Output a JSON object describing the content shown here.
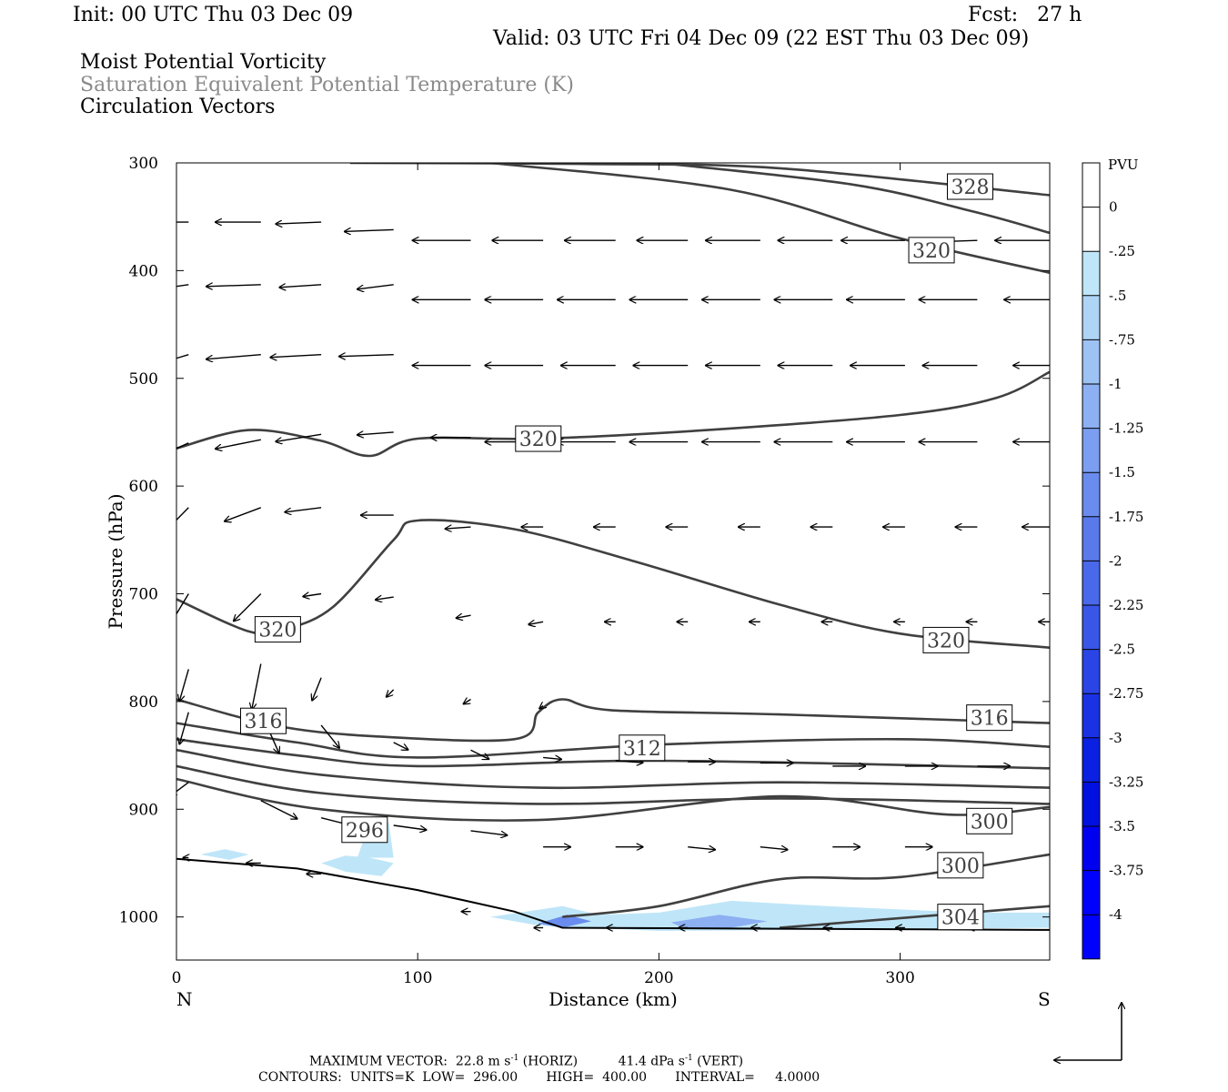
{
  "header": {
    "init": "Init: 00 UTC Thu 03 Dec 09",
    "fcst": "Fcst:   27 h",
    "valid": "Valid: 03 UTC Fri 04 Dec 09 (22 EST Thu 03 Dec 09)",
    "field1": "Moist Potential Vorticity",
    "field2": "Saturation Equivalent Potential Temperature (K)",
    "field3": "Circulation Vectors"
  },
  "colors": {
    "contour": "#404040",
    "vector": "#000000",
    "frame": "#000000",
    "scale": [
      "#ffffff",
      "#ffffff",
      "#bfe6f8",
      "#aed4f6",
      "#9dc2f4",
      "#8cb0f2",
      "#7b9ef0",
      "#6a8cee",
      "#5a7aec",
      "#4a68ea",
      "#3a56e8",
      "#2a44e6",
      "#1a32e4",
      "#0a20e2",
      "#0010e0",
      "#0000f0",
      "#0000ff",
      "#0000ff"
    ]
  },
  "chart_data": {
    "type": "contour",
    "xlabel": "Distance (km)",
    "ylabel": "Pressure (hPa)",
    "xlim": [
      0,
      362
    ],
    "ylim": [
      300,
      1040
    ],
    "x_ticks": [
      0,
      100,
      200,
      300
    ],
    "y_ticks": [
      300,
      400,
      500,
      600,
      700,
      800,
      900,
      1000
    ],
    "x_end_left": "N",
    "x_end_right": "S",
    "colorbar_title": "PVU",
    "colorbar_labels": [
      "0",
      "-.25",
      "-.5",
      "-.75",
      "-1",
      "-1.25",
      "-1.5",
      "-1.75",
      "-2",
      "-2.25",
      "-2.5",
      "-2.75",
      "-3",
      "-3.25",
      "-3.5",
      "-3.75",
      "-4"
    ],
    "contours": [
      {
        "points": [
          [
            72,
            300
          ],
          [
            170,
            301
          ],
          [
            250,
            305
          ],
          [
            362,
            330
          ]
        ]
      },
      {
        "points": [
          [
            200,
            300
          ],
          [
            280,
            320
          ],
          [
            330,
            345
          ],
          [
            362,
            365
          ]
        ]
      },
      {
        "points": [
          [
            130,
            300
          ],
          [
            230,
            325
          ],
          [
            300,
            370
          ],
          [
            362,
            402
          ]
        ]
      },
      {
        "points": [
          [
            0,
            565
          ],
          [
            30,
            548
          ],
          [
            60,
            558
          ],
          [
            80,
            572
          ],
          [
            100,
            556
          ],
          [
            150,
            556
          ],
          [
            220,
            548
          ],
          [
            300,
            534
          ],
          [
            340,
            518
          ],
          [
            362,
            494
          ]
        ]
      },
      {
        "points": [
          [
            0,
            705
          ],
          [
            30,
            735
          ],
          [
            45,
            733
          ],
          [
            65,
            712
          ],
          [
            90,
            650
          ],
          [
            100,
            632
          ],
          [
            140,
            640
          ],
          [
            190,
            670
          ],
          [
            250,
            710
          ],
          [
            300,
            737
          ],
          [
            362,
            750
          ]
        ]
      },
      {
        "points": [
          [
            0,
            798
          ],
          [
            40,
            822
          ],
          [
            80,
            832
          ],
          [
            140,
            835
          ],
          [
            150,
            810
          ],
          [
            160,
            798
          ],
          [
            180,
            808
          ],
          [
            250,
            812
          ],
          [
            362,
            820
          ]
        ]
      },
      {
        "points": [
          [
            0,
            820
          ],
          [
            50,
            838
          ],
          [
            100,
            852
          ],
          [
            200,
            840
          ],
          [
            300,
            835
          ],
          [
            362,
            842
          ]
        ]
      },
      {
        "points": [
          [
            0,
            835
          ],
          [
            50,
            850
          ],
          [
            100,
            860
          ],
          [
            200,
            855
          ],
          [
            362,
            862
          ]
        ]
      },
      {
        "points": [
          [
            0,
            845
          ],
          [
            60,
            868
          ],
          [
            150,
            880
          ],
          [
            250,
            875
          ],
          [
            362,
            880
          ]
        ]
      },
      {
        "points": [
          [
            0,
            860
          ],
          [
            60,
            885
          ],
          [
            150,
            895
          ],
          [
            250,
            890
          ],
          [
            362,
            895
          ]
        ]
      },
      {
        "points": [
          [
            0,
            872
          ],
          [
            60,
            900
          ],
          [
            150,
            910
          ],
          [
            250,
            888
          ],
          [
            320,
            905
          ],
          [
            362,
            898
          ]
        ]
      },
      {
        "points": [
          [
            160,
            1000
          ],
          [
            200,
            990
          ],
          [
            250,
            965
          ],
          [
            300,
            963
          ],
          [
            362,
            942
          ]
        ]
      },
      {
        "points": [
          [
            250,
            1010
          ],
          [
            362,
            990
          ]
        ]
      }
    ],
    "contour_labels": [
      {
        "text": "328",
        "x": 329,
        "y": 322
      },
      {
        "text": "320",
        "x": 313,
        "y": 381
      },
      {
        "text": "320",
        "x": 150,
        "y": 556
      },
      {
        "text": "320",
        "x": 42,
        "y": 733
      },
      {
        "text": "320",
        "x": 319,
        "y": 743
      },
      {
        "text": "316",
        "x": 36,
        "y": 818
      },
      {
        "text": "316",
        "x": 337,
        "y": 815
      },
      {
        "text": "312",
        "x": 193,
        "y": 843
      },
      {
        "text": "300",
        "x": 337,
        "y": 911
      },
      {
        "text": "300",
        "x": 325,
        "y": 952
      },
      {
        "text": "296",
        "x": 78,
        "y": 919
      },
      {
        "text": "304",
        "x": 325,
        "y": 1000
      }
    ],
    "ground": [
      [
        0,
        946
      ],
      [
        50,
        955
      ],
      [
        100,
        975
      ],
      [
        140,
        995
      ],
      [
        160,
        1010
      ],
      [
        362,
        1012
      ]
    ],
    "pv_regions": [
      {
        "level": -0.25,
        "points": [
          [
            10,
            942
          ],
          [
            20,
            937
          ],
          [
            30,
            942
          ],
          [
            22,
            947
          ]
        ]
      },
      {
        "level": -0.25,
        "points": [
          [
            60,
            950
          ],
          [
            70,
            943
          ],
          [
            80,
            945
          ],
          [
            90,
            950
          ],
          [
            85,
            962
          ],
          [
            70,
            958
          ]
        ]
      },
      {
        "level": -0.25,
        "points": [
          [
            75,
            945
          ],
          [
            80,
            912
          ],
          [
            88,
            912
          ],
          [
            90,
            945
          ]
        ]
      },
      {
        "level": -0.25,
        "points": [
          [
            130,
            1000
          ],
          [
            160,
            990
          ],
          [
            175,
            998
          ],
          [
            200,
            996
          ],
          [
            230,
            985
          ],
          [
            270,
            990
          ],
          [
            330,
            996
          ],
          [
            362,
            996
          ],
          [
            362,
            1010
          ],
          [
            200,
            1013
          ],
          [
            150,
            1008
          ]
        ]
      },
      {
        "level": -1.5,
        "points": [
          [
            150,
            1006
          ],
          [
            162,
            998
          ],
          [
            172,
            1004
          ],
          [
            160,
            1010
          ]
        ]
      },
      {
        "level": -1.0,
        "points": [
          [
            205,
            1005
          ],
          [
            225,
            998
          ],
          [
            245,
            1004
          ],
          [
            230,
            1010
          ],
          [
            210,
            1010
          ]
        ]
      }
    ],
    "vectors": [
      [
        5,
        355,
        -32,
        0
      ],
      [
        35,
        355,
        -25,
        0
      ],
      [
        60,
        355,
        -25,
        2
      ],
      [
        90,
        362,
        -27,
        2
      ],
      [
        122,
        372,
        -32,
        0
      ],
      [
        152,
        372,
        -28,
        0
      ],
      [
        182,
        372,
        -28,
        0
      ],
      [
        212,
        372,
        -28,
        0
      ],
      [
        242,
        372,
        -30,
        0
      ],
      [
        272,
        372,
        -30,
        0
      ],
      [
        302,
        372,
        -35,
        0
      ],
      [
        332,
        372,
        -30,
        2
      ],
      [
        362,
        372,
        -30,
        0
      ],
      [
        5,
        413,
        -25,
        7
      ],
      [
        35,
        413,
        -30,
        2
      ],
      [
        60,
        413,
        -23,
        3
      ],
      [
        90,
        413,
        -20,
        5
      ],
      [
        122,
        427,
        -32,
        0
      ],
      [
        152,
        427,
        -32,
        0
      ],
      [
        182,
        427,
        -32,
        0
      ],
      [
        212,
        427,
        -32,
        0
      ],
      [
        242,
        427,
        -32,
        0
      ],
      [
        272,
        427,
        -32,
        0
      ],
      [
        302,
        427,
        -32,
        0
      ],
      [
        332,
        427,
        -32,
        0
      ],
      [
        362,
        427,
        -25,
        0
      ],
      [
        5,
        478,
        -25,
        15
      ],
      [
        35,
        478,
        -30,
        5
      ],
      [
        60,
        478,
        -28,
        3
      ],
      [
        90,
        478,
        -30,
        2
      ],
      [
        122,
        488,
        -32,
        0
      ],
      [
        152,
        488,
        -32,
        0
      ],
      [
        182,
        488,
        -30,
        0
      ],
      [
        212,
        488,
        -30,
        0
      ],
      [
        242,
        488,
        -30,
        0
      ],
      [
        272,
        488,
        -30,
        0
      ],
      [
        302,
        488,
        -30,
        0
      ],
      [
        332,
        488,
        -30,
        0
      ],
      [
        362,
        488,
        -20,
        0
      ],
      [
        5,
        560,
        -20,
        18
      ],
      [
        35,
        557,
        -25,
        10
      ],
      [
        60,
        552,
        -25,
        8
      ],
      [
        90,
        550,
        -20,
        3
      ],
      [
        122,
        555,
        -22,
        0
      ],
      [
        152,
        559,
        -32,
        0
      ],
      [
        182,
        559,
        -32,
        0
      ],
      [
        212,
        559,
        -32,
        0
      ],
      [
        242,
        559,
        -32,
        0
      ],
      [
        272,
        559,
        -32,
        0
      ],
      [
        302,
        559,
        -32,
        0
      ],
      [
        332,
        559,
        -32,
        0
      ],
      [
        362,
        559,
        -20,
        0
      ],
      [
        5,
        620,
        -22,
        45
      ],
      [
        35,
        620,
        -20,
        15
      ],
      [
        60,
        620,
        -20,
        5
      ],
      [
        90,
        627,
        -18,
        0
      ],
      [
        122,
        638,
        -14,
        2
      ],
      [
        152,
        638,
        -12,
        0
      ],
      [
        182,
        638,
        -12,
        0
      ],
      [
        212,
        638,
        -12,
        0
      ],
      [
        242,
        638,
        -12,
        0
      ],
      [
        272,
        638,
        -12,
        0
      ],
      [
        302,
        638,
        -12,
        0
      ],
      [
        332,
        638,
        -12,
        0
      ],
      [
        362,
        638,
        -15,
        0
      ],
      [
        5,
        700,
        -15,
        50
      ],
      [
        35,
        700,
        -15,
        30
      ],
      [
        60,
        700,
        -10,
        3
      ],
      [
        90,
        703,
        -10,
        3
      ],
      [
        122,
        720,
        -8,
        3
      ],
      [
        152,
        726,
        -8,
        3
      ],
      [
        182,
        726,
        -6,
        0
      ],
      [
        212,
        726,
        -6,
        0
      ],
      [
        242,
        726,
        -6,
        0
      ],
      [
        272,
        726,
        -6,
        0
      ],
      [
        302,
        726,
        -6,
        0
      ],
      [
        332,
        726,
        -6,
        0
      ],
      [
        362,
        726,
        -6,
        0
      ],
      [
        5,
        770,
        -5,
        35
      ],
      [
        35,
        765,
        -5,
        50
      ],
      [
        60,
        778,
        -5,
        25
      ],
      [
        90,
        789,
        -4,
        8
      ],
      [
        122,
        798,
        -4,
        5
      ],
      [
        152,
        804,
        -2,
        3
      ],
      [
        5,
        810,
        -5,
        35
      ],
      [
        35,
        810,
        10,
        45
      ],
      [
        60,
        822,
        10,
        25
      ],
      [
        90,
        838,
        8,
        8
      ],
      [
        122,
        845,
        10,
        10
      ],
      [
        152,
        852,
        10,
        2
      ],
      [
        182,
        855,
        15,
        2
      ],
      [
        212,
        856,
        15,
        0
      ],
      [
        242,
        857,
        18,
        0
      ],
      [
        272,
        860,
        18,
        0
      ],
      [
        302,
        860,
        18,
        0
      ],
      [
        332,
        860,
        18,
        0
      ],
      [
        5,
        875,
        -10,
        15
      ],
      [
        35,
        892,
        20,
        20
      ],
      [
        60,
        908,
        20,
        10
      ],
      [
        90,
        915,
        18,
        5
      ],
      [
        122,
        920,
        20,
        5
      ],
      [
        152,
        935,
        15,
        0
      ],
      [
        182,
        935,
        15,
        0
      ],
      [
        212,
        935,
        15,
        3
      ],
      [
        242,
        935,
        15,
        3
      ],
      [
        272,
        935,
        15,
        0
      ],
      [
        302,
        935,
        15,
        0
      ],
      [
        5,
        945,
        -3,
        0
      ],
      [
        35,
        950,
        -8,
        0
      ],
      [
        60,
        960,
        -8,
        0
      ],
      [
        122,
        995,
        -5,
        0
      ],
      [
        152,
        1010,
        -5,
        0
      ],
      [
        182,
        1010,
        -5,
        0
      ],
      [
        212,
        1010,
        -5,
        0
      ],
      [
        242,
        1010,
        -5,
        0
      ],
      [
        272,
        1010,
        -5,
        0
      ],
      [
        302,
        1010,
        -5,
        0
      ],
      [
        332,
        1010,
        -5,
        0
      ]
    ]
  },
  "footer": {
    "max_vector_label": "MAXIMUM VECTOR:",
    "horiz_value": "22.8 m s",
    "horiz_exp": "-1",
    "horiz_tag": " (HORIZ)",
    "vert_value": "41.4 dPa s",
    "vert_exp": "-1",
    "vert_tag": " (VERT)",
    "contours_line": "CONTOURS:  UNITS=K  LOW=  296.00       HIGH=  400.00       INTERVAL=     4.0000"
  }
}
